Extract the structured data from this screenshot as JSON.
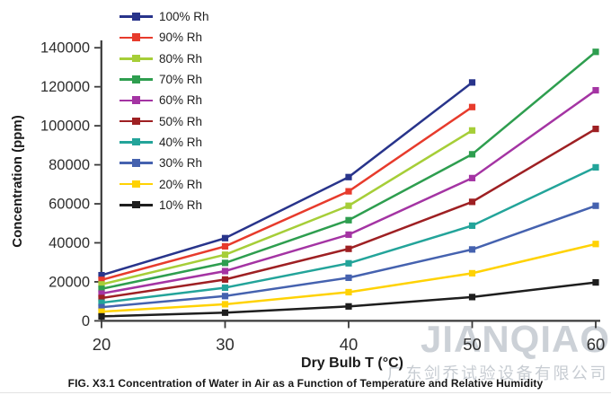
{
  "caption": "FIG. X3.1 Concentration of Water in Air as a Function of Temperature and Relative Humidity",
  "watermark": {
    "brand": "JIANQIAO",
    "company": "广东剑乔试验设备有限公司",
    "brand_color": "#ccd1d7",
    "company_color": "#c7ccd2"
  },
  "chart_data": {
    "type": "line",
    "title": "",
    "xlabel": "Dry Bulb T (°C)",
    "ylabel": "Concentration (ppm)",
    "xlim": [
      20,
      60
    ],
    "ylim": [
      0,
      140000
    ],
    "x_ticks": [
      20,
      30,
      40,
      50,
      60
    ],
    "y_ticks": [
      0,
      20000,
      40000,
      60000,
      80000,
      100000,
      120000,
      140000
    ],
    "grid": false,
    "legend_position": "top-left",
    "axis_color": "#3a3a3a",
    "tick_text_color": "#2e2e2e",
    "marker": "square",
    "series": [
      {
        "name": "100% Rh",
        "color": "#28348b",
        "x": [
          20,
          30,
          40,
          50
        ],
        "y": [
          23400,
          42400,
          73700,
          122200
        ]
      },
      {
        "name": "90% Rh",
        "color": "#e73b2c",
        "x": [
          20,
          30,
          40,
          50
        ],
        "y": [
          21000,
          38200,
          66400,
          109600
        ]
      },
      {
        "name": "80% Rh",
        "color": "#a6ce38",
        "x": [
          20,
          30,
          40,
          50
        ],
        "y": [
          18700,
          33900,
          59000,
          97600
        ]
      },
      {
        "name": "70% Rh",
        "color": "#2e9e4f",
        "x": [
          20,
          30,
          40,
          50,
          60
        ],
        "y": [
          16400,
          29700,
          51600,
          85400,
          137900
        ]
      },
      {
        "name": "60% Rh",
        "color": "#a434a3",
        "x": [
          20,
          30,
          40,
          50,
          60
        ],
        "y": [
          14000,
          25500,
          44200,
          73200,
          118200
        ]
      },
      {
        "name": "50% Rh",
        "color": "#9e2023",
        "x": [
          20,
          30,
          40,
          50,
          60
        ],
        "y": [
          11700,
          21200,
          36900,
          61000,
          98400
        ]
      },
      {
        "name": "40% Rh",
        "color": "#23a49a",
        "x": [
          20,
          30,
          40,
          50,
          60
        ],
        "y": [
          9300,
          17000,
          29500,
          48800,
          78700
        ]
      },
      {
        "name": "30% Rh",
        "color": "#4562af",
        "x": [
          20,
          30,
          40,
          50,
          60
        ],
        "y": [
          7000,
          12700,
          22100,
          36600,
          59000
        ]
      },
      {
        "name": "20% Rh",
        "color": "#ffd203",
        "x": [
          20,
          30,
          40,
          50,
          60
        ],
        "y": [
          4700,
          8500,
          14700,
          24400,
          39400
        ]
      },
      {
        "name": "10% Rh",
        "color": "#1e1e1e",
        "x": [
          20,
          30,
          40,
          50,
          60
        ],
        "y": [
          2300,
          4200,
          7400,
          12200,
          19700
        ]
      }
    ]
  }
}
